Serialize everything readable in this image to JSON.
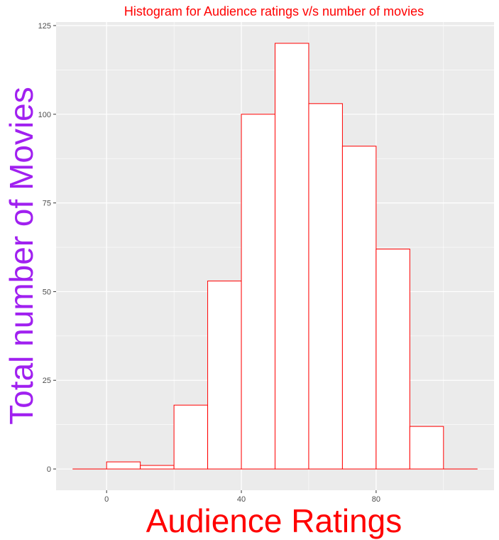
{
  "chart_data": {
    "type": "bar",
    "title": "Histogram for Audience ratings v/s number of movies",
    "xlabel": "Audience Ratings",
    "ylabel": "Total number of Movies",
    "bin_width": 10,
    "bin_starts": [
      -10,
      0,
      10,
      20,
      30,
      40,
      50,
      60,
      70,
      80,
      90,
      100
    ],
    "values": [
      0,
      2,
      1,
      18,
      53,
      100,
      120,
      103,
      91,
      62,
      12,
      0
    ],
    "xlim": [
      -15,
      115
    ],
    "ylim": [
      -6,
      126
    ],
    "x_ticks": [
      0,
      40,
      80
    ],
    "y_ticks": [
      0,
      25,
      50,
      75,
      100,
      125
    ],
    "grid": true,
    "colors": {
      "panel_background": "#ebebeb",
      "grid": "#ffffff",
      "bar_fill": "#ffffff",
      "bar_outline": "#ff0000",
      "title": "#ff0000",
      "xlabel": "#ff0000",
      "ylabel": "#a020f0"
    }
  }
}
